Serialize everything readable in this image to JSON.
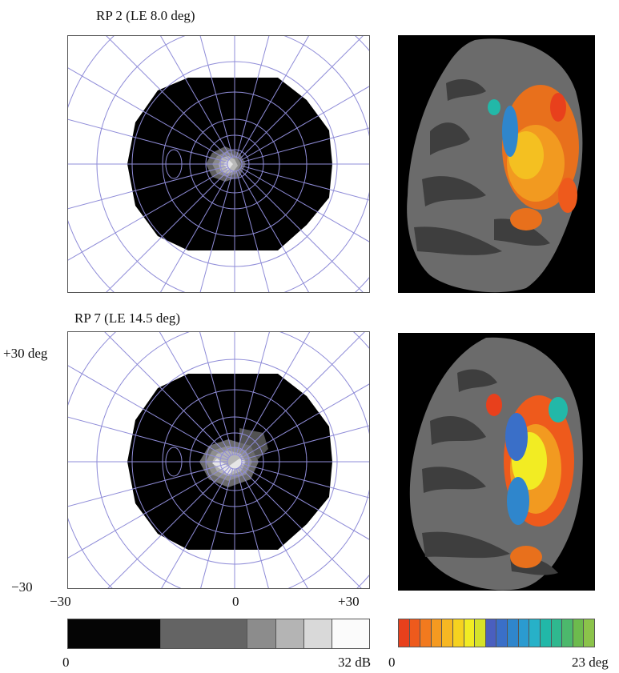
{
  "panels": [
    {
      "title": "RP 2 (LE 8.0 deg)"
    },
    {
      "title": "RP 7 (LE 14.5 deg)"
    }
  ],
  "axes": {
    "y_top": "+30 deg",
    "y_bottom": "−30",
    "x_left": "−30",
    "x_center": "0",
    "x_right": "+30"
  },
  "grid_color": "#8f8cd8",
  "sensitivity_scale": {
    "min_label": "0",
    "max_label": "32 dB",
    "colors": [
      "#050505",
      "#646464",
      "#8c8c8c",
      "#b4b4b4",
      "#d9d9d9",
      "#fbfbfb"
    ],
    "widths": [
      1,
      0.94,
      0.3,
      0.3,
      0.3,
      0.4
    ]
  },
  "eccentricity_scale": {
    "min_label": "0",
    "max_label": "23 deg",
    "colors": [
      "#e8401c",
      "#ee5a1c",
      "#f27a1e",
      "#f59a20",
      "#f7b722",
      "#f6d21f",
      "#f2ec23",
      "#d6e22a",
      "#4a5fbf",
      "#3a6fc8",
      "#2f86cc",
      "#2b9bd0",
      "#27b1c8",
      "#22b8a8",
      "#2fb88f",
      "#4cb86c",
      "#6dbb4d",
      "#8bc34a"
    ]
  }
}
